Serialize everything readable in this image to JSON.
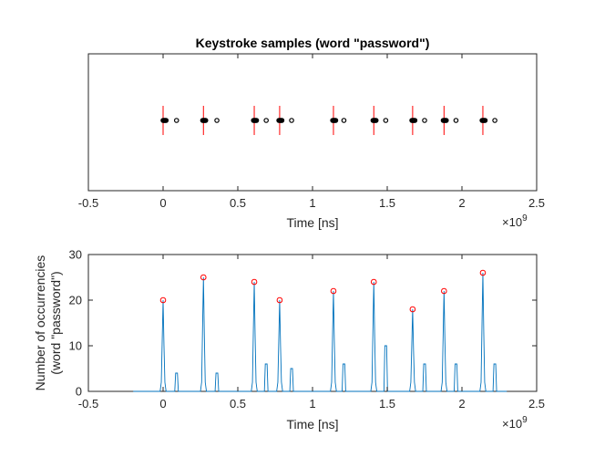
{
  "chart_data": [
    {
      "type": "scatter",
      "title": "Keystroke samples (word \"password\")",
      "xlabel": "Time [ns]",
      "ylabel": "",
      "x_exponent": "×10",
      "x_exponent_power": "9",
      "xlim": [
        -0.5,
        2.5
      ],
      "xticks": [
        "-0.5",
        "0",
        "0.5",
        "1",
        "1.5",
        "2",
        "2.5"
      ],
      "xtick_values": [
        -0.5,
        0,
        0.5,
        1,
        1.5,
        2,
        2.5
      ],
      "grid": false,
      "keystroke_markers": [
        0.0,
        0.27,
        0.61,
        0.78,
        1.14,
        1.41,
        1.67,
        1.88,
        2.14
      ],
      "samples": [
        {
          "x": [
            0.0,
            0.005,
            0.01,
            0.015,
            0.02
          ],
          "outlier": 0.09
        },
        {
          "x": [
            0.265,
            0.27,
            0.275,
            0.28,
            0.285
          ],
          "outlier": 0.36
        },
        {
          "x": [
            0.605,
            0.61,
            0.615,
            0.62,
            0.625
          ],
          "outlier": 0.69
        },
        {
          "x": [
            0.775,
            0.78,
            0.785,
            0.79,
            0.795
          ],
          "outlier": 0.86
        },
        {
          "x": [
            1.135,
            1.14,
            1.145,
            1.15,
            1.155
          ],
          "outlier": 1.21
        },
        {
          "x": [
            1.405,
            1.41,
            1.415,
            1.42,
            1.425
          ],
          "outlier": 1.49
        },
        {
          "x": [
            1.665,
            1.67,
            1.675,
            1.68,
            1.685
          ],
          "outlier": 1.75
        },
        {
          "x": [
            1.875,
            1.88,
            1.885,
            1.89,
            1.895
          ],
          "outlier": 1.96
        },
        {
          "x": [
            2.135,
            2.14,
            2.145,
            2.15,
            2.155
          ],
          "outlier": 2.22
        }
      ],
      "colors": {
        "marker_line": "#ff0000",
        "points": "#000000"
      }
    },
    {
      "type": "line",
      "title": "",
      "xlabel": "Time [ns]",
      "ylabel_line1": "Number of occurrencies",
      "ylabel_line2": "(word \"password\")",
      "x_exponent": "×10",
      "x_exponent_power": "9",
      "xlim": [
        -0.5,
        2.5
      ],
      "ylim": [
        0,
        30
      ],
      "xticks": [
        "-0.5",
        "0",
        "0.5",
        "1",
        "1.5",
        "2",
        "2.5"
      ],
      "xtick_values": [
        -0.5,
        0,
        0.5,
        1,
        1.5,
        2,
        2.5
      ],
      "yticks": [
        "0",
        "10",
        "20",
        "30"
      ],
      "ytick_values": [
        0,
        10,
        20,
        30
      ],
      "grid": false,
      "peaks": [
        {
          "x": 0.0,
          "y": 20,
          "secondary_x": 0.09,
          "secondary_y": 4
        },
        {
          "x": 0.27,
          "y": 25,
          "secondary_x": 0.36,
          "secondary_y": 4
        },
        {
          "x": 0.61,
          "y": 24,
          "secondary_x": 0.69,
          "secondary_y": 6
        },
        {
          "x": 0.78,
          "y": 20,
          "secondary_x": 0.86,
          "secondary_y": 5
        },
        {
          "x": 1.14,
          "y": 22,
          "secondary_x": 1.21,
          "secondary_y": 6
        },
        {
          "x": 1.41,
          "y": 24,
          "secondary_x": 1.49,
          "secondary_y": 10
        },
        {
          "x": 1.67,
          "y": 18,
          "secondary_x": 1.75,
          "secondary_y": 6
        },
        {
          "x": 1.88,
          "y": 22,
          "secondary_x": 1.96,
          "secondary_y": 6
        },
        {
          "x": 2.14,
          "y": 26,
          "secondary_x": 2.22,
          "secondary_y": 6
        }
      ],
      "colors": {
        "line": "#0072bd",
        "peak_marker": "#ff0000"
      }
    }
  ]
}
